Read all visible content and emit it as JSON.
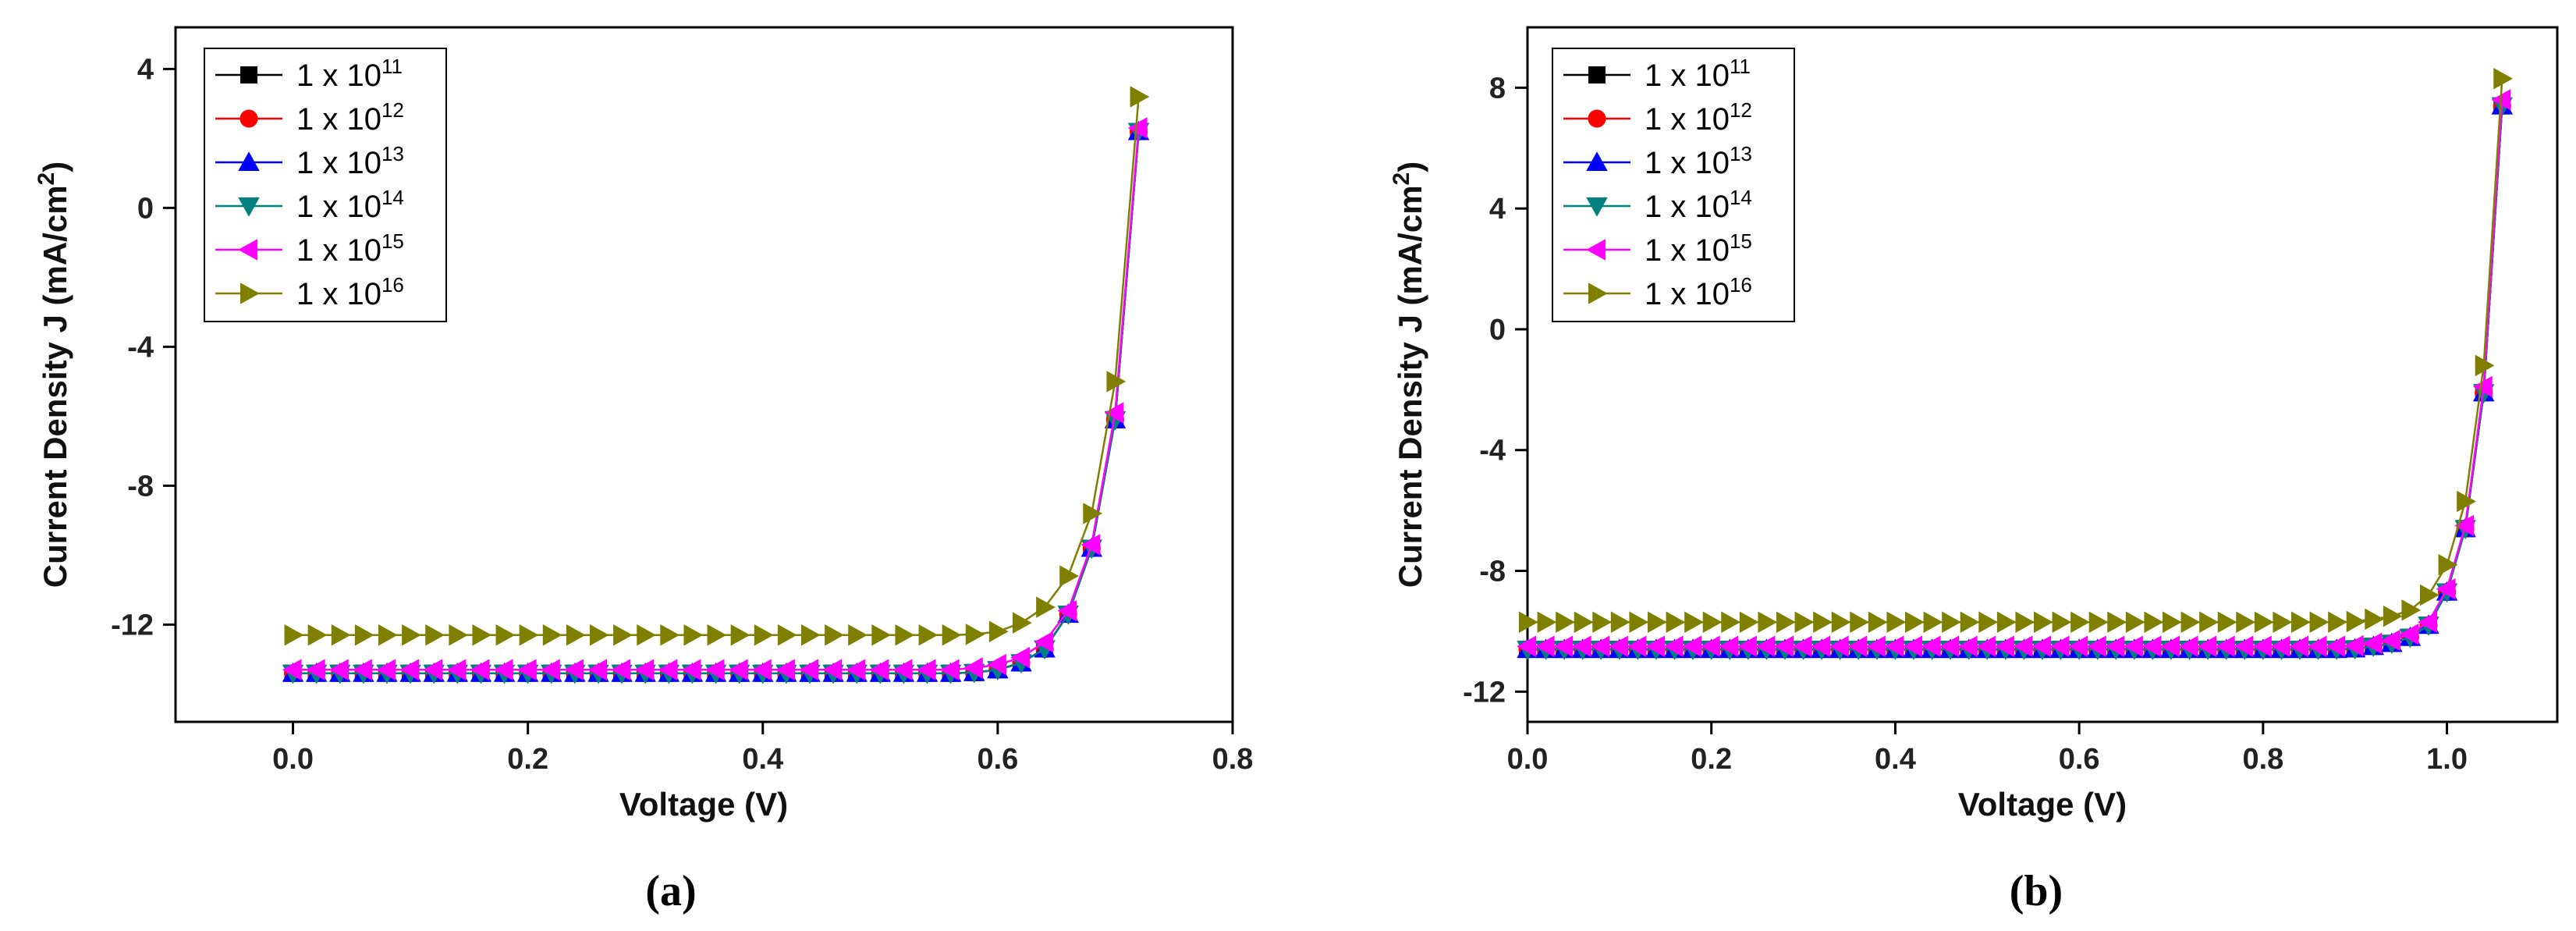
{
  "chart_data": [
    {
      "type": "line",
      "caption": "(a)",
      "xlabel": "Voltage (V)",
      "ylabel_main": "Current Density J (mA/cm",
      "ylabel_sup": "2",
      "ylabel_end": ")",
      "xlim": [
        -0.1,
        0.8
      ],
      "ylim": [
        -14.8,
        5.2
      ],
      "xticks": [
        0.0,
        0.2,
        0.4,
        0.6,
        0.8
      ],
      "xtick_labels": [
        "0.0",
        "0.2",
        "0.4",
        "0.6",
        "0.8"
      ],
      "yticks": [
        4,
        0,
        -4,
        -8,
        -12
      ],
      "ytick_labels": [
        "4",
        "0",
        "-4",
        "-8",
        "-12"
      ],
      "legend_position": "top-left",
      "x": [
        0.0,
        0.02,
        0.04,
        0.06,
        0.08,
        0.1,
        0.12,
        0.14,
        0.16,
        0.18,
        0.2,
        0.22,
        0.24,
        0.26,
        0.28,
        0.3,
        0.32,
        0.34,
        0.36,
        0.38,
        0.4,
        0.42,
        0.44,
        0.46,
        0.48,
        0.5,
        0.52,
        0.54,
        0.56,
        0.58,
        0.6,
        0.62,
        0.64,
        0.66,
        0.68,
        0.7,
        0.72
      ],
      "series": [
        {
          "name": "1 x 10",
          "exponent": "11",
          "color": "#000000",
          "marker": "square",
          "values": [
            -13.4,
            -13.4,
            -13.4,
            -13.4,
            -13.4,
            -13.4,
            -13.4,
            -13.4,
            -13.4,
            -13.4,
            -13.4,
            -13.4,
            -13.4,
            -13.4,
            -13.4,
            -13.4,
            -13.4,
            -13.4,
            -13.4,
            -13.4,
            -13.4,
            -13.4,
            -13.4,
            -13.4,
            -13.4,
            -13.4,
            -13.4,
            -13.4,
            -13.4,
            -13.38,
            -13.3,
            -13.1,
            -12.7,
            -11.7,
            -9.8,
            -6.1,
            2.2
          ]
        },
        {
          "name": "1 x 10",
          "exponent": "12",
          "color": "#ff0000",
          "marker": "circle",
          "values": [
            -13.4,
            -13.4,
            -13.4,
            -13.4,
            -13.4,
            -13.4,
            -13.4,
            -13.4,
            -13.4,
            -13.4,
            -13.4,
            -13.4,
            -13.4,
            -13.4,
            -13.4,
            -13.4,
            -13.4,
            -13.4,
            -13.4,
            -13.4,
            -13.4,
            -13.4,
            -13.4,
            -13.4,
            -13.4,
            -13.4,
            -13.4,
            -13.4,
            -13.4,
            -13.38,
            -13.3,
            -13.1,
            -12.7,
            -11.7,
            -9.8,
            -6.1,
            2.2
          ]
        },
        {
          "name": "1 x 10",
          "exponent": "13",
          "color": "#0000ff",
          "marker": "triangle-up",
          "values": [
            -13.4,
            -13.4,
            -13.4,
            -13.4,
            -13.4,
            -13.4,
            -13.4,
            -13.4,
            -13.4,
            -13.4,
            -13.4,
            -13.4,
            -13.4,
            -13.4,
            -13.4,
            -13.4,
            -13.4,
            -13.4,
            -13.4,
            -13.4,
            -13.4,
            -13.4,
            -13.4,
            -13.4,
            -13.4,
            -13.4,
            -13.4,
            -13.4,
            -13.4,
            -13.38,
            -13.3,
            -13.1,
            -12.7,
            -11.7,
            -9.8,
            -6.1,
            2.2
          ]
        },
        {
          "name": "1 x 10",
          "exponent": "14",
          "color": "#008080",
          "marker": "triangle-down",
          "values": [
            -13.4,
            -13.4,
            -13.4,
            -13.4,
            -13.4,
            -13.4,
            -13.4,
            -13.4,
            -13.4,
            -13.4,
            -13.4,
            -13.4,
            -13.4,
            -13.4,
            -13.4,
            -13.4,
            -13.4,
            -13.4,
            -13.4,
            -13.4,
            -13.4,
            -13.4,
            -13.4,
            -13.4,
            -13.4,
            -13.4,
            -13.4,
            -13.4,
            -13.4,
            -13.38,
            -13.3,
            -13.1,
            -12.7,
            -11.7,
            -9.8,
            -6.1,
            2.2
          ]
        },
        {
          "name": "1 x 10",
          "exponent": "15",
          "color": "#ff00ff",
          "marker": "triangle-left",
          "values": [
            -13.3,
            -13.3,
            -13.3,
            -13.3,
            -13.3,
            -13.3,
            -13.3,
            -13.3,
            -13.3,
            -13.3,
            -13.3,
            -13.3,
            -13.3,
            -13.3,
            -13.3,
            -13.3,
            -13.3,
            -13.3,
            -13.3,
            -13.3,
            -13.3,
            -13.3,
            -13.3,
            -13.3,
            -13.3,
            -13.3,
            -13.3,
            -13.3,
            -13.3,
            -13.25,
            -13.15,
            -12.95,
            -12.5,
            -11.6,
            -9.7,
            -5.9,
            2.3
          ]
        },
        {
          "name": "1 x 10",
          "exponent": "16",
          "color": "#808000",
          "marker": "triangle-right",
          "values": [
            -12.3,
            -12.3,
            -12.3,
            -12.3,
            -12.3,
            -12.3,
            -12.3,
            -12.3,
            -12.3,
            -12.3,
            -12.3,
            -12.3,
            -12.3,
            -12.3,
            -12.3,
            -12.3,
            -12.3,
            -12.3,
            -12.3,
            -12.3,
            -12.3,
            -12.3,
            -12.3,
            -12.3,
            -12.3,
            -12.3,
            -12.3,
            -12.3,
            -12.3,
            -12.28,
            -12.2,
            -11.95,
            -11.5,
            -10.6,
            -8.8,
            -5.0,
            3.2
          ]
        }
      ]
    },
    {
      "type": "line",
      "caption": "(b)",
      "xlabel": "Voltage (V)",
      "ylabel_main": "Current Density J (mA/cm",
      "ylabel_sup": "2",
      "ylabel_end": ")",
      "xlim": [
        0.0,
        1.12
      ],
      "ylim": [
        -13.0,
        10.0
      ],
      "xticks": [
        0.0,
        0.2,
        0.4,
        0.6,
        0.8,
        1.0
      ],
      "xtick_labels": [
        "0.0",
        "0.2",
        "0.4",
        "0.6",
        "0.8",
        "1.0"
      ],
      "yticks": [
        8,
        4,
        0,
        -4,
        -8,
        -12
      ],
      "ytick_labels": [
        "8",
        "4",
        "0",
        "-4",
        "-8",
        "-12"
      ],
      "legend_position": "top-left",
      "x": [
        0.0,
        0.02,
        0.04,
        0.06,
        0.08,
        0.1,
        0.12,
        0.14,
        0.16,
        0.18,
        0.2,
        0.22,
        0.24,
        0.26,
        0.28,
        0.3,
        0.32,
        0.34,
        0.36,
        0.38,
        0.4,
        0.42,
        0.44,
        0.46,
        0.48,
        0.5,
        0.52,
        0.54,
        0.56,
        0.58,
        0.6,
        0.62,
        0.64,
        0.66,
        0.68,
        0.7,
        0.72,
        0.74,
        0.76,
        0.78,
        0.8,
        0.82,
        0.84,
        0.86,
        0.88,
        0.9,
        0.92,
        0.94,
        0.96,
        0.98,
        1.0,
        1.02,
        1.04,
        1.06
      ],
      "series": [
        {
          "name": "1 x 10",
          "exponent": "11",
          "color": "#000000",
          "marker": "square",
          "values": [
            -10.6,
            -10.6,
            -10.6,
            -10.6,
            -10.6,
            -10.6,
            -10.6,
            -10.6,
            -10.6,
            -10.6,
            -10.6,
            -10.6,
            -10.6,
            -10.6,
            -10.6,
            -10.6,
            -10.6,
            -10.6,
            -10.6,
            -10.6,
            -10.6,
            -10.6,
            -10.6,
            -10.6,
            -10.6,
            -10.6,
            -10.6,
            -10.6,
            -10.6,
            -10.6,
            -10.6,
            -10.6,
            -10.6,
            -10.6,
            -10.6,
            -10.6,
            -10.6,
            -10.6,
            -10.6,
            -10.6,
            -10.6,
            -10.6,
            -10.6,
            -10.6,
            -10.6,
            -10.58,
            -10.5,
            -10.4,
            -10.2,
            -9.8,
            -8.7,
            -6.6,
            -2.1,
            7.4
          ]
        },
        {
          "name": "1 x 10",
          "exponent": "12",
          "color": "#ff0000",
          "marker": "circle",
          "values": [
            -10.6,
            -10.6,
            -10.6,
            -10.6,
            -10.6,
            -10.6,
            -10.6,
            -10.6,
            -10.6,
            -10.6,
            -10.6,
            -10.6,
            -10.6,
            -10.6,
            -10.6,
            -10.6,
            -10.6,
            -10.6,
            -10.6,
            -10.6,
            -10.6,
            -10.6,
            -10.6,
            -10.6,
            -10.6,
            -10.6,
            -10.6,
            -10.6,
            -10.6,
            -10.6,
            -10.6,
            -10.6,
            -10.6,
            -10.6,
            -10.6,
            -10.6,
            -10.6,
            -10.6,
            -10.6,
            -10.6,
            -10.6,
            -10.6,
            -10.6,
            -10.6,
            -10.6,
            -10.58,
            -10.5,
            -10.4,
            -10.2,
            -9.8,
            -8.7,
            -6.6,
            -2.1,
            7.4
          ]
        },
        {
          "name": "1 x 10",
          "exponent": "13",
          "color": "#0000ff",
          "marker": "triangle-up",
          "values": [
            -10.6,
            -10.6,
            -10.6,
            -10.6,
            -10.6,
            -10.6,
            -10.6,
            -10.6,
            -10.6,
            -10.6,
            -10.6,
            -10.6,
            -10.6,
            -10.6,
            -10.6,
            -10.6,
            -10.6,
            -10.6,
            -10.6,
            -10.6,
            -10.6,
            -10.6,
            -10.6,
            -10.6,
            -10.6,
            -10.6,
            -10.6,
            -10.6,
            -10.6,
            -10.6,
            -10.6,
            -10.6,
            -10.6,
            -10.6,
            -10.6,
            -10.6,
            -10.6,
            -10.6,
            -10.6,
            -10.6,
            -10.6,
            -10.6,
            -10.6,
            -10.6,
            -10.6,
            -10.58,
            -10.5,
            -10.4,
            -10.2,
            -9.8,
            -8.7,
            -6.6,
            -2.1,
            7.4
          ]
        },
        {
          "name": "1 x 10",
          "exponent": "14",
          "color": "#008080",
          "marker": "triangle-down",
          "values": [
            -10.6,
            -10.6,
            -10.6,
            -10.6,
            -10.6,
            -10.6,
            -10.6,
            -10.6,
            -10.6,
            -10.6,
            -10.6,
            -10.6,
            -10.6,
            -10.6,
            -10.6,
            -10.6,
            -10.6,
            -10.6,
            -10.6,
            -10.6,
            -10.6,
            -10.6,
            -10.6,
            -10.6,
            -10.6,
            -10.6,
            -10.6,
            -10.6,
            -10.6,
            -10.6,
            -10.6,
            -10.6,
            -10.6,
            -10.6,
            -10.6,
            -10.6,
            -10.6,
            -10.6,
            -10.6,
            -10.6,
            -10.6,
            -10.6,
            -10.6,
            -10.6,
            -10.6,
            -10.58,
            -10.5,
            -10.4,
            -10.2,
            -9.8,
            -8.7,
            -6.6,
            -2.1,
            7.4
          ]
        },
        {
          "name": "1 x 10",
          "exponent": "15",
          "color": "#ff00ff",
          "marker": "triangle-left",
          "values": [
            -10.5,
            -10.5,
            -10.5,
            -10.5,
            -10.5,
            -10.5,
            -10.5,
            -10.5,
            -10.5,
            -10.5,
            -10.5,
            -10.5,
            -10.5,
            -10.5,
            -10.5,
            -10.5,
            -10.5,
            -10.5,
            -10.5,
            -10.5,
            -10.5,
            -10.5,
            -10.5,
            -10.5,
            -10.5,
            -10.5,
            -10.5,
            -10.5,
            -10.5,
            -10.5,
            -10.5,
            -10.5,
            -10.5,
            -10.5,
            -10.5,
            -10.5,
            -10.5,
            -10.5,
            -10.5,
            -10.5,
            -10.5,
            -10.5,
            -10.5,
            -10.5,
            -10.5,
            -10.48,
            -10.4,
            -10.3,
            -10.1,
            -9.7,
            -8.6,
            -6.5,
            -1.9,
            7.6
          ]
        },
        {
          "name": "1 x 10",
          "exponent": "16",
          "color": "#808000",
          "marker": "triangle-right",
          "values": [
            -9.7,
            -9.7,
            -9.7,
            -9.7,
            -9.7,
            -9.7,
            -9.7,
            -9.7,
            -9.7,
            -9.7,
            -9.7,
            -9.7,
            -9.7,
            -9.7,
            -9.7,
            -9.7,
            -9.7,
            -9.7,
            -9.7,
            -9.7,
            -9.7,
            -9.7,
            -9.7,
            -9.7,
            -9.7,
            -9.7,
            -9.7,
            -9.7,
            -9.7,
            -9.7,
            -9.7,
            -9.7,
            -9.7,
            -9.7,
            -9.7,
            -9.7,
            -9.7,
            -9.7,
            -9.7,
            -9.7,
            -9.7,
            -9.7,
            -9.7,
            -9.7,
            -9.7,
            -9.68,
            -9.6,
            -9.5,
            -9.3,
            -8.8,
            -7.8,
            -5.7,
            -1.2,
            8.3
          ]
        }
      ]
    }
  ]
}
